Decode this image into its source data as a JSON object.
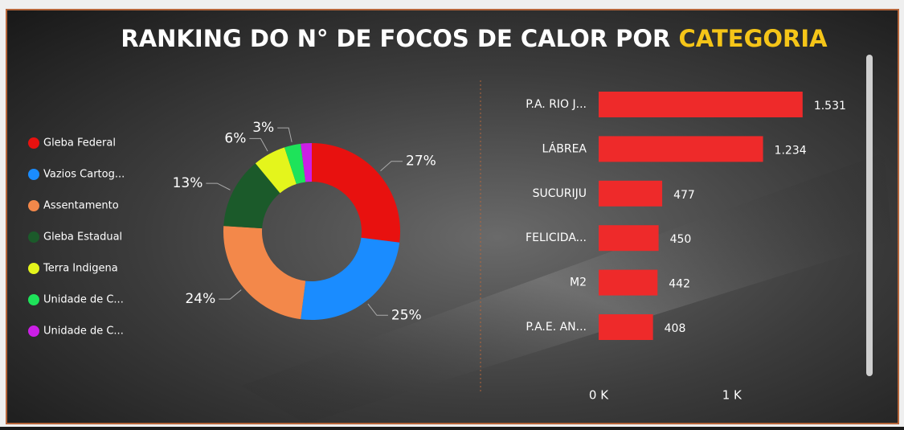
{
  "title": {
    "text": "RANKING DO N° DE FOCOS DE CALOR POR",
    "highlight": "CATEGORIA"
  },
  "chart_data": [
    {
      "type": "donut",
      "categories": [
        "Gleba Federal",
        "Vazios Cartog...",
        "Assentamento",
        "Gleba Estadual",
        "Terra Indigena",
        "Unidade de C...",
        "Unidade de C..."
      ],
      "values": [
        27,
        25,
        24,
        13,
        6,
        3,
        2
      ],
      "value_labels": [
        "27%",
        "25%",
        "24%",
        "13%",
        "6%",
        "3%",
        null
      ],
      "colors": [
        "#e8110f",
        "#1a8cff",
        "#f3884a",
        "#1b5a2a",
        "#e4f51c",
        "#1ee35a",
        "#cc1fe6"
      ]
    },
    {
      "type": "hbar",
      "categories": [
        "P.A. RIO J...",
        "LÁBREA",
        "SUCURIJU",
        "FELICIDA...",
        "M2",
        "P.A.E. AN..."
      ],
      "values": [
        1531,
        1234,
        477,
        450,
        442,
        408
      ],
      "value_labels": [
        "1.531",
        "1.234",
        "477",
        "450",
        "442",
        "408"
      ],
      "color": "#ee2a2a",
      "xlim": [
        0,
        1900
      ],
      "xticks": [
        {
          "value": 0,
          "label": "0 K"
        },
        {
          "value": 1000,
          "label": "1 K"
        }
      ]
    }
  ]
}
